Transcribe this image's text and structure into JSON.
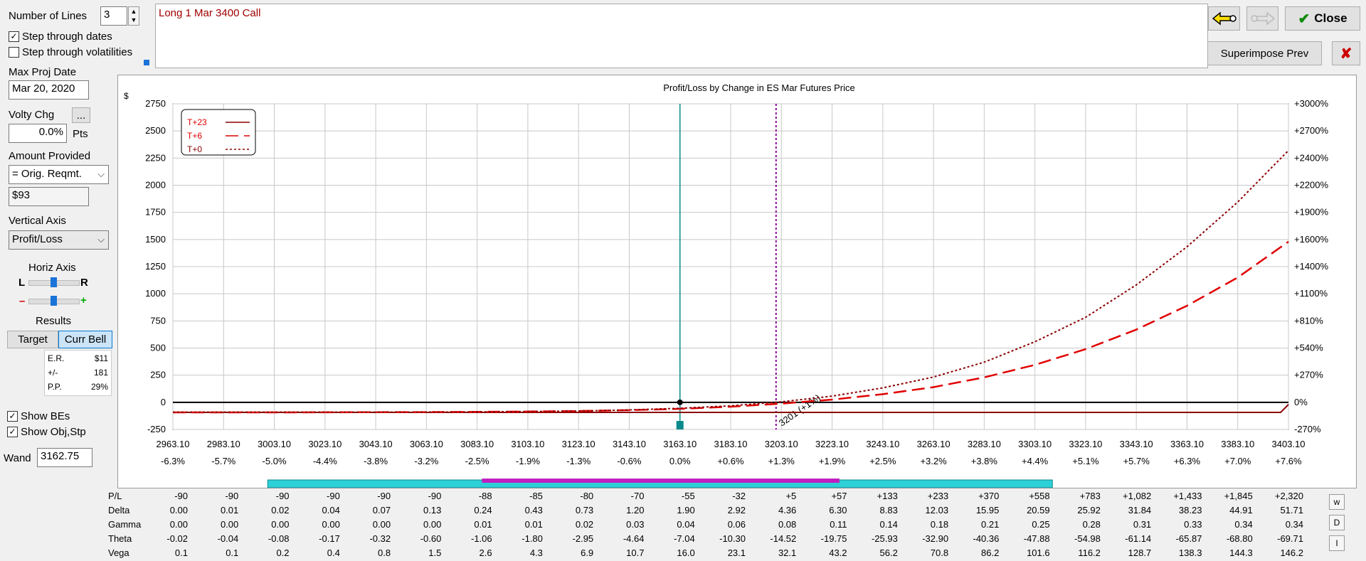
{
  "controls": {
    "num_lines_label": "Number of Lines",
    "num_lines_value": "3",
    "step_dates_label": "Step through dates",
    "step_dates_checked": true,
    "step_vols_label": "Step through volatilities",
    "step_vols_checked": false,
    "max_proj_date_label": "Max Proj Date",
    "max_proj_date_value": "Mar 20, 2020",
    "volty_chg_label": "Volty Chg",
    "volty_chg_button": "...",
    "volty_chg_value": "0.0%",
    "volty_chg_unit": "Pts",
    "amount_provided_label": "Amount Provided",
    "amount_provided_value": "= Orig. Reqmt.",
    "amount_value": "$93",
    "vertical_axis_label": "Vertical Axis",
    "vertical_axis_value": "Profit/Loss",
    "horiz_axis_label": "Horiz Axis",
    "horiz_left": "L",
    "horiz_right": "R",
    "zoom_minus": "–",
    "zoom_plus": "+",
    "results_label": "Results",
    "target_tab": "Target",
    "curr_bell_tab": "Curr Bell",
    "results": [
      {
        "k": "E.R.",
        "v": "$11"
      },
      {
        "k": "+/-",
        "v": "181"
      },
      {
        "k": "P.P.",
        "v": "29%"
      }
    ],
    "show_bes_label": "Show BEs",
    "show_bes_checked": true,
    "show_obj_label": "Show Obj,Stp",
    "show_obj_checked": true,
    "wand_label": "Wand",
    "wand_value": "3162.75"
  },
  "position_text": "Long 1 Mar 3400 Call",
  "toolbar": {
    "close_label": "Close",
    "superimpose_label": "Superimpose Prev",
    "close_x": "✘",
    "back_icon": "arrow-left-icon",
    "fwd_icon": "arrow-right-icon"
  },
  "chart_data": {
    "type": "line",
    "title": "Profit/Loss by Change in ES Mar Futures Price",
    "ylabel": "$",
    "ylim": [
      -250,
      2750
    ],
    "y_ticks": [
      -250,
      0,
      250,
      500,
      750,
      1000,
      1250,
      1500,
      1750,
      2000,
      2250,
      2500,
      2750
    ],
    "y_right_ticks": [
      "-270%",
      "0%",
      "+270%",
      "+540%",
      "+810%",
      "+1100%",
      "+1400%",
      "+1600%",
      "+1900%",
      "+2200%",
      "+2400%",
      "+2700%",
      "+3000%"
    ],
    "x_ticks": [
      "2963.10",
      "2983.10",
      "3003.10",
      "3023.10",
      "3043.10",
      "3063.10",
      "3083.10",
      "3103.10",
      "3123.10",
      "3143.10",
      "3163.10",
      "3183.10",
      "3203.10",
      "3223.10",
      "3243.10",
      "3263.10",
      "3283.10",
      "3303.10",
      "3323.10",
      "3343.10",
      "3363.10",
      "3383.10",
      "3403.10"
    ],
    "x_pct": [
      "-6.3%",
      "-5.7%",
      "-5.0%",
      "-4.4%",
      "-3.8%",
      "-3.2%",
      "-2.5%",
      "-1.9%",
      "-1.3%",
      "-0.6%",
      "0.0%",
      "+0.6%",
      "+1.3%",
      "+1.9%",
      "+2.5%",
      "+3.2%",
      "+3.8%",
      "+4.4%",
      "+5.1%",
      "+5.7%",
      "+6.3%",
      "+7.0%",
      "+7.6%"
    ],
    "xlim": [
      2963.1,
      3403.1
    ],
    "current_price": 3163.1,
    "marker_price": 3201,
    "marker_label": "3201 (+1%)",
    "legend": [
      "T+23",
      "T+6",
      "T+0"
    ],
    "series": [
      {
        "name": "T+23",
        "color": "#8b0000",
        "style": "solid",
        "x": [
          2963.1,
          3400,
          3403.1
        ],
        "y": [
          -93,
          -93,
          -20
        ]
      },
      {
        "name": "T+6",
        "color": "#e00000",
        "style": "dashed",
        "x": [
          2963.1,
          2983.1,
          3003.1,
          3023.1,
          3043.1,
          3063.1,
          3083.1,
          3103.1,
          3123.1,
          3143.1,
          3163.1,
          3183.1,
          3203.1,
          3223.1,
          3243.1,
          3263.1,
          3283.1,
          3303.1,
          3323.1,
          3343.1,
          3363.1,
          3383.1,
          3403.1
        ],
        "y": [
          -93,
          -93,
          -93,
          -92,
          -91,
          -90,
          -88,
          -85,
          -80,
          -72,
          -60,
          -40,
          -12,
          25,
          75,
          140,
          230,
          345,
          490,
          670,
          890,
          1150,
          1480
        ]
      },
      {
        "name": "T+0",
        "color": "#8b0000",
        "style": "dotted",
        "x": [
          2963.1,
          2983.1,
          3003.1,
          3023.1,
          3043.1,
          3063.1,
          3083.1,
          3103.1,
          3123.1,
          3143.1,
          3163.1,
          3183.1,
          3203.1,
          3223.1,
          3243.1,
          3263.1,
          3283.1,
          3303.1,
          3323.1,
          3343.1,
          3363.1,
          3383.1,
          3403.1
        ],
        "y": [
          -90,
          -90,
          -90,
          -90,
          -90,
          -90,
          -88,
          -85,
          -80,
          -70,
          -55,
          -32,
          5,
          57,
          133,
          233,
          370,
          558,
          783,
          1082,
          1433,
          1845,
          2320
        ]
      }
    ]
  },
  "bands": {
    "cyan": {
      "from": 3000.5,
      "to": 3310
    },
    "magenta": {
      "from": 3085,
      "to": 3226
    }
  },
  "table": {
    "rows": [
      {
        "name": "P/L",
        "values": [
          "-90",
          "-90",
          "-90",
          "-90",
          "-90",
          "-90",
          "-88",
          "-85",
          "-80",
          "-70",
          "-55",
          "-32",
          "+5",
          "+57",
          "+133",
          "+233",
          "+370",
          "+558",
          "+783",
          "+1,082",
          "+1,433",
          "+1,845",
          "+2,320"
        ]
      },
      {
        "name": "Delta",
        "values": [
          "0.00",
          "0.01",
          "0.02",
          "0.04",
          "0.07",
          "0.13",
          "0.24",
          "0.43",
          "0.73",
          "1.20",
          "1.90",
          "2.92",
          "4.36",
          "6.30",
          "8.83",
          "12.03",
          "15.95",
          "20.59",
          "25.92",
          "31.84",
          "38.23",
          "44.91",
          "51.71"
        ]
      },
      {
        "name": "Gamma",
        "values": [
          "0.00",
          "0.00",
          "0.00",
          "0.00",
          "0.00",
          "0.00",
          "0.01",
          "0.01",
          "0.02",
          "0.03",
          "0.04",
          "0.06",
          "0.08",
          "0.11",
          "0.14",
          "0.18",
          "0.21",
          "0.25",
          "0.28",
          "0.31",
          "0.33",
          "0.34",
          "0.34"
        ]
      },
      {
        "name": "Theta",
        "values": [
          "-0.02",
          "-0.04",
          "-0.08",
          "-0.17",
          "-0.32",
          "-0.60",
          "-1.06",
          "-1.80",
          "-2.95",
          "-4.64",
          "-7.04",
          "-10.30",
          "-14.52",
          "-19.75",
          "-25.93",
          "-32.90",
          "-40.36",
          "-47.88",
          "-54.98",
          "-61.14",
          "-65.87",
          "-68.80",
          "-69.71"
        ]
      },
      {
        "name": "Vega",
        "values": [
          "0.1",
          "0.1",
          "0.2",
          "0.4",
          "0.8",
          "1.5",
          "2.6",
          "4.3",
          "6.9",
          "10.7",
          "16.0",
          "23.1",
          "32.1",
          "43.2",
          "56.2",
          "70.8",
          "86.2",
          "101.6",
          "116.2",
          "128.7",
          "138.3",
          "144.3",
          "146.2"
        ]
      }
    ],
    "side_buttons": [
      "w",
      "D",
      "I"
    ]
  }
}
